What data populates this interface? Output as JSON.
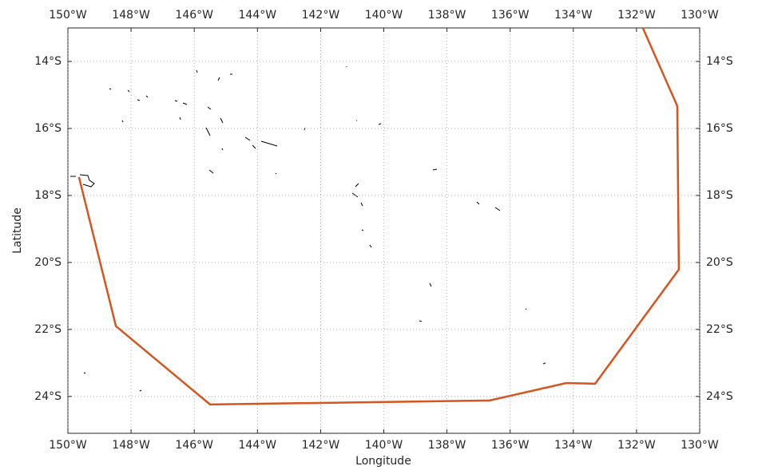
{
  "chart_data": {
    "type": "line",
    "xlabel": "Longitude",
    "ylabel": "Latitude",
    "xlim": [
      -150,
      -130
    ],
    "ylim": [
      -25.1,
      -13
    ],
    "xticks": [
      {
        "value": -150,
        "label": "150°W"
      },
      {
        "value": -148,
        "label": "148°W"
      },
      {
        "value": -146,
        "label": "146°W"
      },
      {
        "value": -144,
        "label": "144°W"
      },
      {
        "value": -142,
        "label": "142°W"
      },
      {
        "value": -140,
        "label": "140°W"
      },
      {
        "value": -138,
        "label": "138°W"
      },
      {
        "value": -136,
        "label": "136°W"
      },
      {
        "value": -134,
        "label": "134°W"
      },
      {
        "value": -132,
        "label": "132°W"
      },
      {
        "value": -130,
        "label": "130°W"
      }
    ],
    "yticks": [
      {
        "value": -14,
        "label": "14°S"
      },
      {
        "value": -16,
        "label": "16°S"
      },
      {
        "value": -18,
        "label": "18°S"
      },
      {
        "value": -20,
        "label": "20°S"
      },
      {
        "value": -22,
        "label": "22°S"
      },
      {
        "value": -24,
        "label": "24°S"
      }
    ],
    "grid": true,
    "series": [
      {
        "color": "#d6541e",
        "x": [
          -131.8,
          -130.71,
          -130.66,
          -133.31,
          -134.22,
          -136.65,
          -145.5,
          -148.48,
          -149.65
        ],
        "values": [
          -13.0,
          -15.33,
          -20.21,
          -23.62,
          -23.6,
          -24.12,
          -24.24,
          -21.9,
          -17.45
        ]
      }
    ]
  }
}
